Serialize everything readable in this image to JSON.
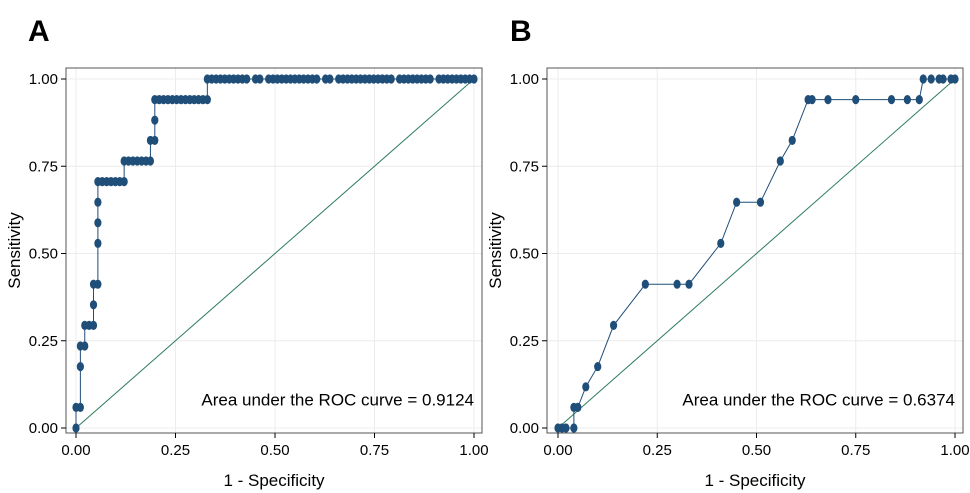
{
  "chart_data": [
    {
      "type": "line",
      "panel_label": "A",
      "xlabel": "1 - Specificity",
      "ylabel": "Sensitivity",
      "xlim": [
        0,
        1
      ],
      "ylim": [
        0,
        1
      ],
      "xticks": [
        "0.00",
        "0.25",
        "0.50",
        "0.75",
        "1.00"
      ],
      "yticks": [
        "0.00",
        "0.25",
        "0.50",
        "0.75",
        "1.00"
      ],
      "grid": true,
      "annotation": "Area under the ROC curve = 0.9124",
      "colors": {
        "curve": "#1f4e79",
        "reference": "#2e7d5b",
        "grid": "#ececec",
        "frame": "#555555"
      },
      "reference_line": [
        [
          0,
          0
        ],
        [
          1,
          1
        ]
      ],
      "points": [
        [
          0,
          0
        ],
        [
          0,
          0.059
        ],
        [
          0.011,
          0.059
        ],
        [
          0.011,
          0.176
        ],
        [
          0.011,
          0.235
        ],
        [
          0.022,
          0.235
        ],
        [
          0.022,
          0.294
        ],
        [
          0.033,
          0.294
        ],
        [
          0.044,
          0.294
        ],
        [
          0.044,
          0.353
        ],
        [
          0.044,
          0.412
        ],
        [
          0.055,
          0.412
        ],
        [
          0.055,
          0.529
        ],
        [
          0.055,
          0.588
        ],
        [
          0.055,
          0.647
        ],
        [
          0.055,
          0.706
        ],
        [
          0.066,
          0.706
        ],
        [
          0.077,
          0.706
        ],
        [
          0.088,
          0.706
        ],
        [
          0.099,
          0.706
        ],
        [
          0.11,
          0.706
        ],
        [
          0.121,
          0.706
        ],
        [
          0.121,
          0.765
        ],
        [
          0.132,
          0.765
        ],
        [
          0.143,
          0.765
        ],
        [
          0.154,
          0.765
        ],
        [
          0.165,
          0.765
        ],
        [
          0.176,
          0.765
        ],
        [
          0.187,
          0.765
        ],
        [
          0.187,
          0.824
        ],
        [
          0.198,
          0.824
        ],
        [
          0.198,
          0.882
        ],
        [
          0.198,
          0.941
        ],
        [
          0.209,
          0.941
        ],
        [
          0.22,
          0.941
        ],
        [
          0.231,
          0.941
        ],
        [
          0.242,
          0.941
        ],
        [
          0.253,
          0.941
        ],
        [
          0.264,
          0.941
        ],
        [
          0.275,
          0.941
        ],
        [
          0.286,
          0.941
        ],
        [
          0.297,
          0.941
        ],
        [
          0.308,
          0.941
        ],
        [
          0.319,
          0.941
        ],
        [
          0.33,
          0.941
        ],
        [
          0.33,
          1.0
        ],
        [
          0.341,
          1.0
        ],
        [
          0.352,
          1.0
        ],
        [
          0.363,
          1.0
        ],
        [
          0.374,
          1.0
        ],
        [
          0.385,
          1.0
        ],
        [
          0.396,
          1.0
        ],
        [
          0.407,
          1.0
        ],
        [
          0.418,
          1.0
        ],
        [
          0.429,
          1.0
        ],
        [
          0.451,
          1.0
        ],
        [
          0.462,
          1.0
        ],
        [
          0.484,
          1.0
        ],
        [
          0.495,
          1.0
        ],
        [
          0.506,
          1.0
        ],
        [
          0.517,
          1.0
        ],
        [
          0.528,
          1.0
        ],
        [
          0.539,
          1.0
        ],
        [
          0.55,
          1.0
        ],
        [
          0.561,
          1.0
        ],
        [
          0.572,
          1.0
        ],
        [
          0.583,
          1.0
        ],
        [
          0.594,
          1.0
        ],
        [
          0.605,
          1.0
        ],
        [
          0.627,
          1.0
        ],
        [
          0.638,
          1.0
        ],
        [
          0.66,
          1.0
        ],
        [
          0.671,
          1.0
        ],
        [
          0.682,
          1.0
        ],
        [
          0.693,
          1.0
        ],
        [
          0.704,
          1.0
        ],
        [
          0.715,
          1.0
        ],
        [
          0.726,
          1.0
        ],
        [
          0.737,
          1.0
        ],
        [
          0.748,
          1.0
        ],
        [
          0.759,
          1.0
        ],
        [
          0.77,
          1.0
        ],
        [
          0.781,
          1.0
        ],
        [
          0.792,
          1.0
        ],
        [
          0.813,
          1.0
        ],
        [
          0.824,
          1.0
        ],
        [
          0.835,
          1.0
        ],
        [
          0.846,
          1.0
        ],
        [
          0.857,
          1.0
        ],
        [
          0.868,
          1.0
        ],
        [
          0.879,
          1.0
        ],
        [
          0.89,
          1.0
        ],
        [
          0.912,
          1.0
        ],
        [
          0.923,
          1.0
        ],
        [
          0.934,
          1.0
        ],
        [
          0.945,
          1.0
        ],
        [
          0.956,
          1.0
        ],
        [
          0.967,
          1.0
        ],
        [
          0.978,
          1.0
        ],
        [
          0.989,
          1.0
        ],
        [
          1.0,
          1.0
        ]
      ]
    },
    {
      "type": "line",
      "panel_label": "B",
      "xlabel": "1 - Specificity",
      "ylabel": "Sensitivity",
      "xlim": [
        0,
        1
      ],
      "ylim": [
        0,
        1
      ],
      "xticks": [
        "0.00",
        "0.25",
        "0.50",
        "0.75",
        "1.00"
      ],
      "yticks": [
        "0.00",
        "0.25",
        "0.50",
        "0.75",
        "1.00"
      ],
      "grid": true,
      "annotation": "Area under the ROC curve = 0.6374",
      "colors": {
        "curve": "#1f4e79",
        "reference": "#2e7d5b",
        "grid": "#ececec",
        "frame": "#555555"
      },
      "reference_line": [
        [
          0,
          0
        ],
        [
          1,
          1
        ]
      ],
      "points": [
        [
          0,
          0
        ],
        [
          0.01,
          0
        ],
        [
          0.02,
          0
        ],
        [
          0.04,
          0
        ],
        [
          0.04,
          0.059
        ],
        [
          0.05,
          0.059
        ],
        [
          0.07,
          0.118
        ],
        [
          0.1,
          0.176
        ],
        [
          0.14,
          0.294
        ],
        [
          0.22,
          0.412
        ],
        [
          0.3,
          0.412
        ],
        [
          0.33,
          0.412
        ],
        [
          0.41,
          0.529
        ],
        [
          0.45,
          0.647
        ],
        [
          0.51,
          0.647
        ],
        [
          0.56,
          0.765
        ],
        [
          0.59,
          0.824
        ],
        [
          0.63,
          0.941
        ],
        [
          0.64,
          0.941
        ],
        [
          0.68,
          0.941
        ],
        [
          0.75,
          0.941
        ],
        [
          0.84,
          0.941
        ],
        [
          0.88,
          0.941
        ],
        [
          0.91,
          0.941
        ],
        [
          0.92,
          1.0
        ],
        [
          0.94,
          1.0
        ],
        [
          0.96,
          1.0
        ],
        [
          0.97,
          1.0
        ],
        [
          0.99,
          1.0
        ],
        [
          1.0,
          1.0
        ]
      ]
    }
  ]
}
